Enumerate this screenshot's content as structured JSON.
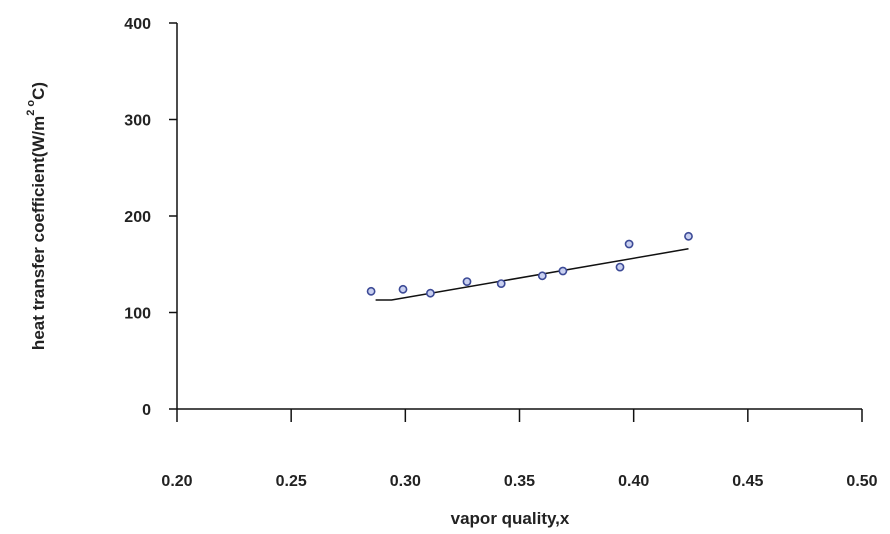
{
  "chart_data": {
    "type": "scatter",
    "xlabel": "vapor quality,x",
    "ylabel_parts": {
      "main": "heat transfer coefficient(W/m",
      "sup": "2",
      "degree": " o",
      "tail": "C)"
    },
    "xlim": [
      0.2,
      0.5
    ],
    "ylim": [
      0,
      400
    ],
    "x_ticks": [
      "0.20",
      "0.25",
      "0.30",
      "0.35",
      "0.40",
      "0.45",
      "0.50"
    ],
    "y_ticks": [
      "0",
      "100",
      "200",
      "300",
      "400"
    ],
    "grid": false,
    "series": [
      {
        "points": [
          [
            0.285,
            122
          ],
          [
            0.299,
            124
          ],
          [
            0.311,
            120
          ],
          [
            0.327,
            132
          ],
          [
            0.342,
            130
          ],
          [
            0.36,
            138
          ],
          [
            0.369,
            143
          ],
          [
            0.394,
            147
          ],
          [
            0.398,
            171
          ],
          [
            0.424,
            179
          ]
        ]
      }
    ],
    "fit_line": [
      [
        0.287,
        113
      ],
      [
        0.294,
        113
      ],
      [
        0.424,
        166
      ]
    ],
    "colors": {
      "marker_edge": "#3c4a96",
      "marker_fill": "#c9d0f0",
      "line": "#111111"
    }
  }
}
